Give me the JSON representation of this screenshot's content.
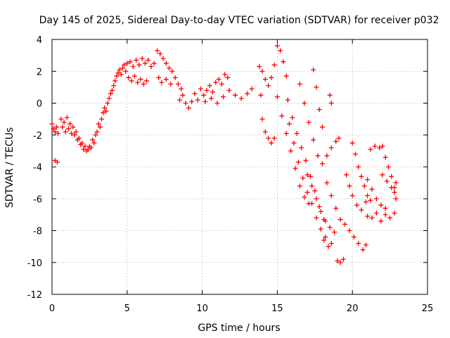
{
  "chart_data": {
    "type": "scatter",
    "title": "Day 145 of 2025, Sidereal Day-to-day VTEC variation (SDTVAR) for receiver p032",
    "xlabel": "GPS time / hours",
    "ylabel": "SDTVAR / TECUs",
    "xlim": [
      0,
      25
    ],
    "ylim": [
      -12,
      4
    ],
    "xticks": [
      0,
      5,
      10,
      15,
      20,
      25
    ],
    "yticks": [
      -12,
      -10,
      -8,
      -6,
      -4,
      -2,
      0,
      2,
      4
    ],
    "grid": true,
    "marker": "plus",
    "series_color": "#ff0000",
    "series": [
      {
        "values": [
          [
            0.0,
            -1.3
          ],
          [
            0.1,
            -1.6
          ],
          [
            0.2,
            -1.8
          ],
          [
            0.3,
            -1.5
          ],
          [
            0.4,
            -1.9
          ],
          [
            0.2,
            -3.6
          ],
          [
            0.35,
            -3.7
          ],
          [
            0.6,
            -1.0
          ],
          [
            0.8,
            -1.2
          ],
          [
            1.0,
            -0.9
          ],
          [
            1.2,
            -1.3
          ],
          [
            1.4,
            -1.5
          ],
          [
            1.6,
            -1.8
          ],
          [
            1.8,
            -2.2
          ],
          [
            2.0,
            -2.5
          ],
          [
            2.2,
            -2.7
          ],
          [
            2.4,
            -2.9
          ],
          [
            2.6,
            -2.8
          ],
          [
            2.8,
            -2.5
          ],
          [
            0.7,
            -1.5
          ],
          [
            0.9,
            -1.8
          ],
          [
            1.1,
            -1.6
          ],
          [
            1.3,
            -1.9
          ],
          [
            1.5,
            -2.0
          ],
          [
            1.7,
            -2.3
          ],
          [
            1.9,
            -2.6
          ],
          [
            2.1,
            -2.9
          ],
          [
            2.3,
            -3.0
          ],
          [
            2.5,
            -2.7
          ],
          [
            2.7,
            -2.3
          ],
          [
            2.9,
            -2.0
          ],
          [
            3.0,
            -1.8
          ],
          [
            3.1,
            -1.3
          ],
          [
            3.2,
            -1.5
          ],
          [
            3.3,
            -1.0
          ],
          [
            3.4,
            -0.6
          ],
          [
            3.5,
            -0.3
          ],
          [
            3.6,
            -0.5
          ],
          [
            3.7,
            0.0
          ],
          [
            3.8,
            0.3
          ],
          [
            3.9,
            0.6
          ],
          [
            4.0,
            0.8
          ],
          [
            4.1,
            1.1
          ],
          [
            4.2,
            1.4
          ],
          [
            4.3,
            1.7
          ],
          [
            4.4,
            1.9
          ],
          [
            4.5,
            2.1
          ],
          [
            4.6,
            1.8
          ],
          [
            4.7,
            2.2
          ],
          [
            4.8,
            2.4
          ],
          [
            4.9,
            2.0
          ],
          [
            5.0,
            2.5
          ],
          [
            5.2,
            2.6
          ],
          [
            5.4,
            2.3
          ],
          [
            5.6,
            2.7
          ],
          [
            5.8,
            2.4
          ],
          [
            6.0,
            2.8
          ],
          [
            6.2,
            2.5
          ],
          [
            6.4,
            2.7
          ],
          [
            6.6,
            2.3
          ],
          [
            6.8,
            2.5
          ],
          [
            5.1,
            1.6
          ],
          [
            5.3,
            1.4
          ],
          [
            5.5,
            1.7
          ],
          [
            5.7,
            1.3
          ],
          [
            5.9,
            1.5
          ],
          [
            6.1,
            1.2
          ],
          [
            6.3,
            1.4
          ],
          [
            7.0,
            3.3
          ],
          [
            7.2,
            3.1
          ],
          [
            7.4,
            2.8
          ],
          [
            7.6,
            2.5
          ],
          [
            7.8,
            2.2
          ],
          [
            8.0,
            2.0
          ],
          [
            8.2,
            1.6
          ],
          [
            8.4,
            1.2
          ],
          [
            8.6,
            0.9
          ],
          [
            7.1,
            1.6
          ],
          [
            7.3,
            1.3
          ],
          [
            7.6,
            1.5
          ],
          [
            7.9,
            1.2
          ],
          [
            8.5,
            0.2
          ],
          [
            8.7,
            0.5
          ],
          [
            8.9,
            0.0
          ],
          [
            9.1,
            -0.3
          ],
          [
            9.3,
            0.1
          ],
          [
            9.5,
            0.6
          ],
          [
            9.7,
            0.2
          ],
          [
            9.9,
            0.9
          ],
          [
            10.1,
            0.5
          ],
          [
            10.3,
            0.8
          ],
          [
            10.5,
            1.1
          ],
          [
            10.7,
            0.7
          ],
          [
            10.9,
            1.3
          ],
          [
            11.1,
            1.5
          ],
          [
            11.3,
            1.2
          ],
          [
            11.5,
            1.8
          ],
          [
            11.7,
            1.6
          ],
          [
            10.2,
            0.1
          ],
          [
            10.6,
            0.3
          ],
          [
            11.0,
            0.0
          ],
          [
            11.4,
            0.4
          ],
          [
            11.8,
            0.8
          ],
          [
            12.2,
            0.5
          ],
          [
            12.6,
            0.3
          ],
          [
            13.0,
            0.6
          ],
          [
            13.3,
            0.9
          ],
          [
            13.8,
            2.3
          ],
          [
            14.0,
            2.0
          ],
          [
            14.2,
            1.5
          ],
          [
            14.4,
            1.1
          ],
          [
            14.6,
            1.6
          ],
          [
            14.8,
            2.4
          ],
          [
            15.0,
            3.6
          ],
          [
            15.2,
            3.3
          ],
          [
            15.4,
            2.6
          ],
          [
            15.6,
            1.7
          ],
          [
            13.9,
            0.5
          ],
          [
            14.0,
            -1.0
          ],
          [
            14.2,
            -1.8
          ],
          [
            14.4,
            -2.2
          ],
          [
            14.6,
            -2.5
          ],
          [
            14.8,
            -2.2
          ],
          [
            15.0,
            0.4
          ],
          [
            15.3,
            -0.8
          ],
          [
            15.6,
            -1.9
          ],
          [
            15.9,
            -3.0
          ],
          [
            16.2,
            -4.1
          ],
          [
            16.5,
            -5.2
          ],
          [
            16.8,
            -5.9
          ],
          [
            17.1,
            -6.3
          ],
          [
            15.8,
            -1.3
          ],
          [
            16.1,
            -2.5
          ],
          [
            16.4,
            -3.7
          ],
          [
            16.7,
            -4.7
          ],
          [
            17.0,
            -5.6
          ],
          [
            17.3,
            -6.3
          ],
          [
            17.6,
            -7.2
          ],
          [
            17.9,
            -7.9
          ],
          [
            18.2,
            -8.4
          ],
          [
            15.7,
            0.2
          ],
          [
            16.0,
            -0.9
          ],
          [
            16.3,
            -1.9
          ],
          [
            16.6,
            -2.8
          ],
          [
            16.9,
            -3.6
          ],
          [
            17.2,
            -4.6
          ],
          [
            17.5,
            -5.5
          ],
          [
            17.8,
            -6.5
          ],
          [
            18.1,
            -7.3
          ],
          [
            16.5,
            1.2
          ],
          [
            16.8,
            0.0
          ],
          [
            17.1,
            -1.2
          ],
          [
            17.4,
            -2.3
          ],
          [
            17.7,
            -3.3
          ],
          [
            18.0,
            -3.8
          ],
          [
            18.3,
            -3.3
          ],
          [
            18.6,
            -2.8
          ],
          [
            18.9,
            -2.4
          ],
          [
            19.1,
            -2.2
          ],
          [
            17.0,
            -4.5
          ],
          [
            17.3,
            -5.2
          ],
          [
            17.6,
            -6.0
          ],
          [
            17.9,
            -6.8
          ],
          [
            18.2,
            -7.4
          ],
          [
            18.5,
            -7.8
          ],
          [
            18.8,
            -8.1
          ],
          [
            17.4,
            2.1
          ],
          [
            17.6,
            1.0
          ],
          [
            17.8,
            -0.4
          ],
          [
            18.0,
            -1.5
          ],
          [
            18.5,
            0.5
          ],
          [
            18.6,
            0.0
          ],
          [
            18.3,
            -5.0
          ],
          [
            18.6,
            -5.8
          ],
          [
            18.9,
            -6.6
          ],
          [
            19.2,
            -7.3
          ],
          [
            19.5,
            -7.6
          ],
          [
            19.8,
            -8.0
          ],
          [
            20.1,
            -8.4
          ],
          [
            20.4,
            -8.8
          ],
          [
            20.7,
            -9.2
          ],
          [
            20.9,
            -8.9
          ],
          [
            19.0,
            -9.9
          ],
          [
            19.2,
            -10.0
          ],
          [
            19.4,
            -9.8
          ],
          [
            18.1,
            -8.6
          ],
          [
            18.4,
            -9.0
          ],
          [
            18.6,
            -8.8
          ],
          [
            19.6,
            -4.5
          ],
          [
            19.8,
            -5.2
          ],
          [
            20.0,
            -5.8
          ],
          [
            20.3,
            -6.4
          ],
          [
            20.6,
            -6.7
          ],
          [
            20.9,
            -6.2
          ],
          [
            20.0,
            -2.5
          ],
          [
            20.2,
            -3.2
          ],
          [
            20.4,
            -4.0
          ],
          [
            20.6,
            -4.6
          ],
          [
            20.8,
            -5.2
          ],
          [
            21.0,
            -5.8
          ],
          [
            21.2,
            -6.1
          ],
          [
            21.0,
            -4.8
          ],
          [
            21.3,
            -5.4
          ],
          [
            21.6,
            -6.0
          ],
          [
            21.9,
            -6.4
          ],
          [
            22.2,
            -6.6
          ],
          [
            21.2,
            -2.9
          ],
          [
            21.5,
            -2.7
          ],
          [
            21.8,
            -2.8
          ],
          [
            21.0,
            -7.1
          ],
          [
            21.3,
            -7.2
          ],
          [
            21.6,
            -6.9
          ],
          [
            21.9,
            -7.4
          ],
          [
            22.2,
            -7.0
          ],
          [
            22.5,
            -7.2
          ],
          [
            22.8,
            -6.9
          ],
          [
            22.0,
            -4.5
          ],
          [
            22.3,
            -4.9
          ],
          [
            22.6,
            -5.3
          ],
          [
            22.8,
            -5.6
          ],
          [
            22.9,
            -5.0
          ],
          [
            22.0,
            -2.7
          ],
          [
            22.2,
            -3.4
          ],
          [
            22.4,
            -4.0
          ],
          [
            22.6,
            -4.6
          ],
          [
            22.8,
            -5.3
          ],
          [
            22.9,
            -6.0
          ]
        ]
      }
    ]
  }
}
